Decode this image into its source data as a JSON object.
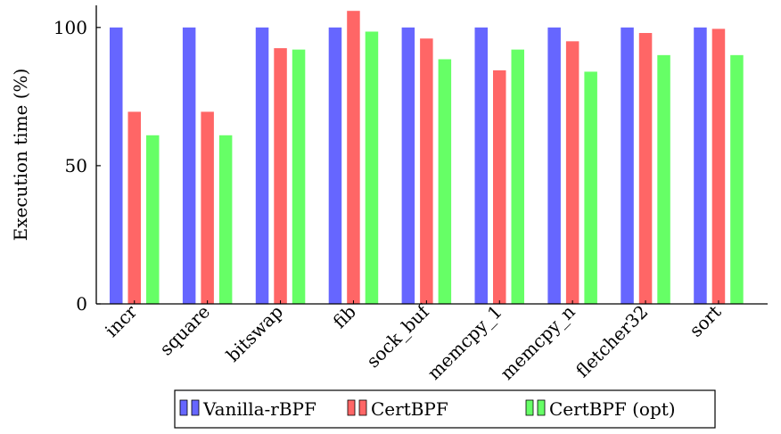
{
  "chart_data": {
    "type": "bar",
    "title": "",
    "xlabel": "",
    "ylabel": "Execution time (%)",
    "ylim": [
      0,
      108
    ],
    "yticks": [
      0,
      50,
      100
    ],
    "grid": false,
    "legend_position": "bottom",
    "categories": [
      "incr",
      "square",
      "bitswap",
      "fib",
      "sock_buf",
      "memcpy_1",
      "memcpy_n",
      "fletcher32",
      "sort"
    ],
    "series": [
      {
        "name": "Vanilla-rBPF",
        "color": "#6666ff",
        "values": [
          100,
          100,
          100,
          100,
          100,
          100,
          100,
          100,
          100
        ]
      },
      {
        "name": "CertBPF",
        "color": "#ff6666",
        "values": [
          69.5,
          69.5,
          92.5,
          106,
          96,
          84.5,
          95,
          98,
          99.5
        ]
      },
      {
        "name": "CertBPF (opt)",
        "color": "#66ff66",
        "values": [
          61,
          61,
          92,
          98.5,
          88.5,
          92,
          84,
          90,
          90
        ]
      }
    ]
  }
}
